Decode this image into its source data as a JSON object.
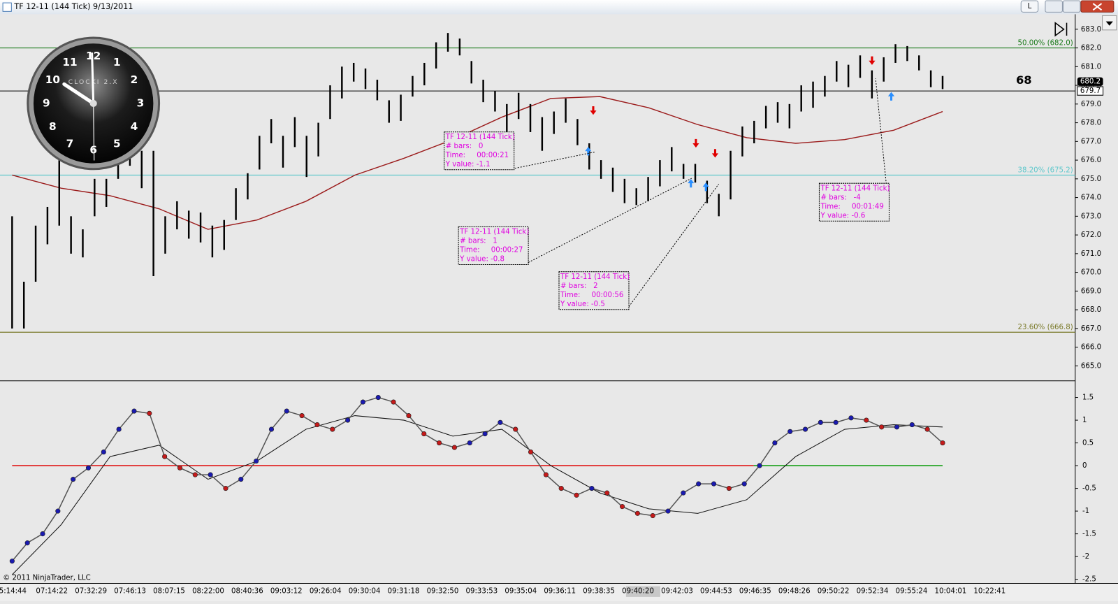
{
  "window": {
    "title": "TF 12-11 (144 Tick)  9/13/2011",
    "button": "L"
  },
  "counter": "68",
  "copyright": "© 2011 NinjaTrader, LLC",
  "clock": {
    "brand": "CLOCKI 2.X",
    "numerals": [
      "12",
      "1",
      "2",
      "3",
      "4",
      "5",
      "6",
      "7",
      "8",
      "9",
      "10",
      "11"
    ]
  },
  "price_panel": {
    "ylim": [
      664.2,
      683.8
    ],
    "yticks": [
      {
        "value": 683,
        "label": "683.0"
      },
      {
        "value": 682,
        "label": "682.0"
      },
      {
        "value": 681,
        "label": "681.0"
      },
      {
        "value": 680,
        "label": "680.0"
      },
      {
        "value": 679,
        "label": "679.0"
      },
      {
        "value": 678,
        "label": "678.0"
      },
      {
        "value": 677,
        "label": "677.0"
      },
      {
        "value": 676,
        "label": "676.0"
      },
      {
        "value": 675,
        "label": "675.0"
      },
      {
        "value": 674,
        "label": "674.0"
      },
      {
        "value": 673,
        "label": "673.0"
      },
      {
        "value": 672,
        "label": "672.0"
      },
      {
        "value": 671,
        "label": "671.0"
      },
      {
        "value": 670,
        "label": "670.0"
      },
      {
        "value": 669,
        "label": "669.0"
      },
      {
        "value": 668,
        "label": "668.0"
      },
      {
        "value": 667,
        "label": "667.0"
      },
      {
        "value": 666,
        "label": "666.0"
      },
      {
        "value": 665,
        "label": "665.0"
      }
    ],
    "high": [
      673,
      669.5,
      672.5,
      673.5,
      676,
      673,
      672.3,
      675,
      675,
      676.8,
      677.3,
      676.5,
      676.5,
      673,
      673.8,
      673.3,
      673.2,
      672.5,
      672.8,
      674.5,
      675.3,
      677.3,
      678.2,
      677.3,
      678.3,
      677.3,
      678,
      680,
      681,
      681.2,
      680.9,
      680.3,
      679.2,
      679.5,
      680.5,
      681.2,
      682.3,
      682.8,
      682.5,
      681.3,
      680.3,
      679.7,
      679,
      679.6,
      679,
      678.3,
      678.6,
      679.3,
      678.2,
      676.9,
      676,
      675.6,
      675,
      674.5,
      675.1,
      676,
      676.7,
      675.8,
      675.8,
      674.9,
      674.2,
      676.5,
      677.8,
      678.1,
      678.9,
      679.1,
      679,
      680,
      680.2,
      680.5,
      681.3,
      681.1,
      681.6,
      680.8,
      681.5,
      682.2,
      682.1,
      681.6,
      680.8,
      680.5
    ],
    "low": [
      667,
      667,
      669.5,
      671.5,
      672.5,
      671,
      670.8,
      673,
      673.5,
      675,
      675.7,
      674.5,
      669.8,
      671,
      672.3,
      671.8,
      671.6,
      670.8,
      671.2,
      672.8,
      673.9,
      675.5,
      676.9,
      675.6,
      676.7,
      675.1,
      676.2,
      678.2,
      679.3,
      680.2,
      679.8,
      679.2,
      678,
      678.1,
      679.4,
      680,
      680.9,
      681.8,
      681.6,
      680.1,
      679.1,
      678.6,
      677.3,
      678.2,
      677.5,
      676.5,
      677.4,
      678,
      676.8,
      675.5,
      675,
      674.3,
      673.7,
      673.6,
      673.8,
      674.6,
      675.4,
      675,
      674.8,
      673.7,
      673,
      673.9,
      676.2,
      676.9,
      677.7,
      678,
      677.7,
      678.6,
      678.8,
      679.4,
      680.2,
      679.9,
      680.4,
      679.3,
      680.2,
      681.2,
      681.3,
      680.8,
      679.9,
      679.8
    ],
    "bar_color": "#000000",
    "ma": {
      "color": "#9b1b1b",
      "values": [
        675.2,
        674.5,
        674.1,
        673.4,
        672.3,
        672.8,
        673.8,
        675.2,
        676.1,
        677.1,
        678.3,
        679.3,
        679.4,
        678.8,
        677.9,
        677.2,
        676.9,
        677.1,
        677.6,
        678.6
      ]
    },
    "fib_levels": [
      {
        "label": "50.00% (682.0)",
        "value": 682.0,
        "color": "#1a7a1a"
      },
      {
        "label": "38.20% (675.2)",
        "value": 675.2,
        "color": "#5fc8cc"
      },
      {
        "label": "23.60% (666.8)",
        "value": 666.8,
        "color": "#7a7a2a"
      }
    ],
    "last_price": 680.2,
    "line_price": 679.7,
    "annotations": [
      [
        "TF 12-11 (144 Tick)",
        "# bars:   0",
        "Time:     00:00:21",
        "Y value: -1.1"
      ],
      [
        "TF 12-11 (144 Tick)",
        "# bars:   1",
        "Time:     00:00:27",
        "Y value: -0.8"
      ],
      [
        "TF 12-11 (144 Tick)",
        "# bars:   2",
        "Time:     00:00:56",
        "Y value: -0.5"
      ],
      [
        "TF 12-11 (144 Tick)",
        "# bars:   -4",
        "Time:     00:01:49",
        "Y value: -0.6"
      ]
    ]
  },
  "oscillator_panel": {
    "ylim": [
      -2.59,
      1.85
    ],
    "yticks": [
      1.5,
      1,
      0.5,
      0,
      -0.5,
      -1,
      -1.5,
      -2,
      -2.5
    ],
    "colors": {
      "up": "#1a1ab0",
      "down": "#c41a1a"
    },
    "values": [
      -2.1,
      -1.7,
      -1.5,
      -1,
      -0.3,
      -0.05,
      0.3,
      0.8,
      1.2,
      1.15,
      0.2,
      -0.05,
      -0.2,
      -0.2,
      -0.5,
      -0.3,
      0.1,
      0.8,
      1.2,
      1.1,
      0.9,
      0.8,
      1,
      1.4,
      1.5,
      1.4,
      1.1,
      0.7,
      0.5,
      0.4,
      0.5,
      0.7,
      0.95,
      0.8,
      0.3,
      -0.2,
      -0.5,
      -0.65,
      -0.5,
      -0.6,
      -0.9,
      -1.05,
      -1.1,
      -1,
      -0.6,
      -0.4,
      -0.4,
      -0.5,
      -0.4,
      0,
      0.5,
      0.75,
      0.8,
      0.95,
      0.95,
      1.05,
      1,
      0.85,
      0.85,
      0.9,
      0.8,
      0.5
    ],
    "signal": [
      -2.4,
      -1.3,
      0.2,
      0.45,
      -0.3,
      0.1,
      0.8,
      1.1,
      1.0,
      0.65,
      0.8,
      0.0,
      -0.6,
      -0.95,
      -1.05,
      -0.75,
      0.2,
      0.8,
      0.9,
      0.85
    ],
    "zero_line": {
      "value": 0,
      "colors": [
        "#e00000",
        "#009900"
      ]
    }
  },
  "time_labels": [
    "5:14:44",
    "07:14:22",
    "07:32:29",
    "07:46:13",
    "08:07:15",
    "08:22:00",
    "08:40:36",
    "09:03:12",
    "09:26:04",
    "09:30:04",
    "09:31:18",
    "09:32:50",
    "09:33:53",
    "09:35:04",
    "09:36:11",
    "09:38:35",
    "09:40:20",
    "09:42:03",
    "09:44:53",
    "09:46:35",
    "09:48:26",
    "09:50:22",
    "09:52:34",
    "09:55:24",
    "10:04:01",
    "10:22:41"
  ]
}
